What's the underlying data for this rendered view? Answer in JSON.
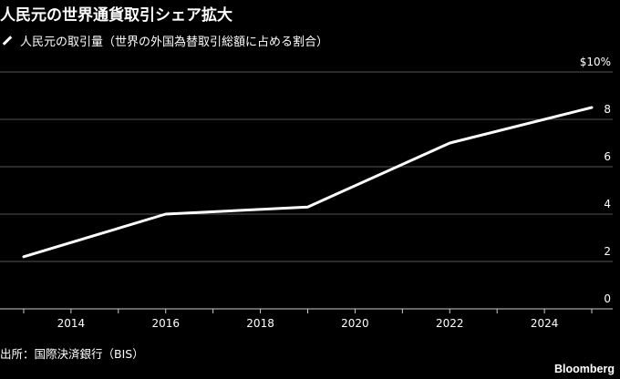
{
  "title": "人民元の世界通貨取引シェア拡大",
  "source": "出所：国際決済銀行（BIS）",
  "brand": "Bloomberg",
  "colors": {
    "background": "#000000",
    "line": "#ffffff",
    "grid": "#555555",
    "text": "#ffffff"
  },
  "chart_data": {
    "type": "line",
    "series": [
      {
        "name": "人民元の取引量（世界の外国為替取引総額に占める割合）",
        "x": [
          2013,
          2016,
          2019,
          2022,
          2025
        ],
        "values": [
          2.2,
          4.0,
          4.3,
          7.0,
          8.5
        ]
      }
    ],
    "xlim": [
      2012.5,
      2025.5
    ],
    "ylim": [
      0,
      10
    ],
    "x_ticks": [
      2014,
      2016,
      2018,
      2020,
      2022,
      2024
    ],
    "y_ticks": [
      0,
      2,
      4,
      6,
      8
    ],
    "y_tick_labels": [
      "0",
      "2",
      "4",
      "6",
      "8"
    ],
    "y_top_label": "$10%",
    "legend_position": "top-left",
    "grid": true
  }
}
